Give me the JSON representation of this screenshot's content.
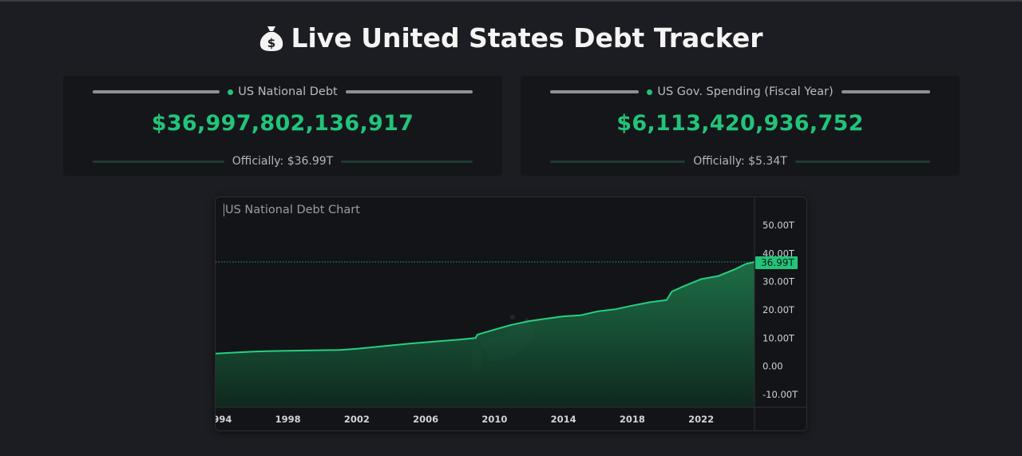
{
  "header": {
    "title": "Live United States Debt Tracker",
    "icon": "money-bag-icon"
  },
  "cards": {
    "debt": {
      "label": "US National Debt",
      "amount": "$36,997,802,136,917",
      "official": "Officially: $36.99T"
    },
    "spending": {
      "label": "US Gov. Spending (Fiscal Year)",
      "amount": "$6,113,420,936,752",
      "official": "Officially: $5.34T"
    }
  },
  "colors": {
    "accent": "#22c47a",
    "background": "#1c1d22",
    "card": "#15161a"
  },
  "chart_data": {
    "type": "area",
    "title": "US National Debt Chart",
    "ylim": [
      -10,
      55
    ],
    "y_ticks": [
      "50.00T",
      "40.00T",
      "30.00T",
      "20.00T",
      "10.00T",
      "0.00",
      "-10.00T"
    ],
    "y_tick_values": [
      50,
      40,
      30,
      20,
      10,
      0,
      -10
    ],
    "x_ticks": [
      "1994",
      "1998",
      "2002",
      "2006",
      "2010",
      "2014",
      "2018",
      "2022"
    ],
    "x_tick_values": [
      1994,
      1998,
      2002,
      2006,
      2010,
      2014,
      2018,
      2022
    ],
    "xlim": [
      1993.8,
      2025.1
    ],
    "current_label": "36.99T",
    "current_value": 36.99,
    "series": [
      {
        "x": [
          1993.8,
          1995,
          1996,
          1997,
          1998,
          1999,
          2000,
          2001,
          2002,
          2003,
          2004,
          2005,
          2006,
          2007,
          2008,
          2008.9,
          2009,
          2010,
          2011,
          2012,
          2013,
          2014,
          2015,
          2016,
          2017,
          2018,
          2019,
          2020,
          2020.3,
          2021,
          2022,
          2023,
          2024,
          2024.6,
          2025.1
        ],
        "y": [
          4.5,
          4.9,
          5.2,
          5.4,
          5.5,
          5.6,
          5.7,
          5.8,
          6.2,
          6.8,
          7.4,
          8.0,
          8.5,
          9.0,
          9.5,
          10.0,
          11.2,
          13.0,
          14.7,
          16.0,
          16.9,
          17.7,
          18.1,
          19.5,
          20.2,
          21.5,
          22.7,
          23.5,
          26.5,
          28.4,
          30.9,
          32.0,
          34.5,
          36.3,
          36.99
        ]
      }
    ]
  }
}
